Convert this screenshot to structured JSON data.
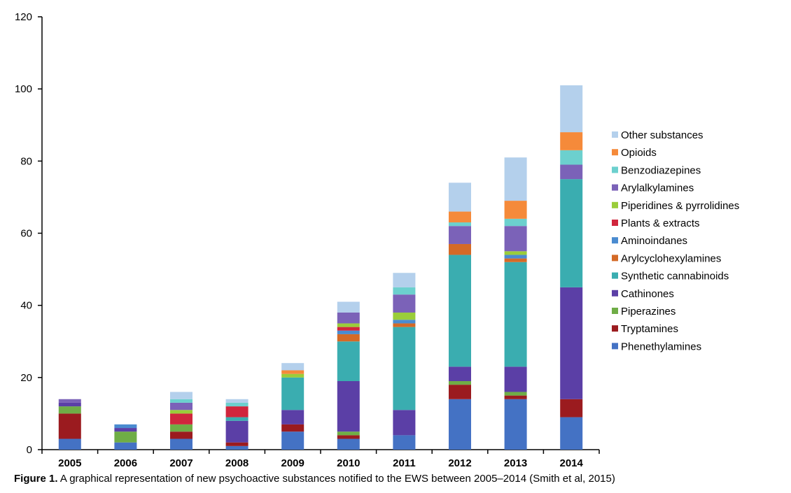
{
  "chart_data": {
    "type": "bar",
    "stacked": true,
    "categories": [
      "2005",
      "2006",
      "2007",
      "2008",
      "2009",
      "2010",
      "2011",
      "2012",
      "2013",
      "2014"
    ],
    "ylim": [
      0,
      120
    ],
    "yticks": [
      0,
      20,
      40,
      60,
      80,
      100,
      120
    ],
    "legend_position": "right",
    "series": [
      {
        "name": "Phenethylamines",
        "color": "#4472C4",
        "values": [
          3,
          2,
          3,
          1,
          5,
          3,
          4,
          14,
          14,
          9
        ]
      },
      {
        "name": "Tryptamines",
        "color": "#9B1B1F",
        "values": [
          7,
          0,
          2,
          1,
          2,
          1,
          0,
          4,
          1,
          5
        ]
      },
      {
        "name": "Piperazines",
        "color": "#6FAD46",
        "values": [
          2,
          3,
          2,
          0,
          0,
          1,
          0,
          1,
          1,
          0
        ]
      },
      {
        "name": "Cathinones",
        "color": "#5B3FA6",
        "values": [
          1,
          1,
          0,
          6,
          4,
          14,
          7,
          4,
          7,
          31
        ]
      },
      {
        "name": "Synthetic cannabinoids",
        "color": "#3AADB0",
        "values": [
          0,
          0,
          0,
          1,
          9,
          11,
          23,
          31,
          29,
          30
        ]
      },
      {
        "name": "Arylcyclohexylamines",
        "color": "#D46A27",
        "values": [
          0,
          0,
          0,
          0,
          0,
          2,
          1,
          3,
          1,
          0
        ]
      },
      {
        "name": "Aminoindanes",
        "color": "#4A8BD0",
        "values": [
          0,
          1,
          0,
          0,
          0,
          1,
          1,
          0,
          1,
          0
        ]
      },
      {
        "name": "Plants & extracts",
        "color": "#D0263D",
        "values": [
          0,
          0,
          3,
          3,
          0,
          1,
          0,
          0,
          0,
          0
        ]
      },
      {
        "name": "Piperidines & pyrrolidines",
        "color": "#9ACD3A",
        "values": [
          0,
          0,
          1,
          0,
          1,
          1,
          2,
          0,
          1,
          0
        ]
      },
      {
        "name": "Arylalkylamines",
        "color": "#7B62B8",
        "values": [
          1,
          0,
          2,
          0,
          0,
          3,
          5,
          5,
          7,
          4
        ]
      },
      {
        "name": "Benzodiazepines",
        "color": "#6CD0CE",
        "values": [
          0,
          0,
          1,
          1,
          0,
          0,
          2,
          1,
          2,
          4
        ]
      },
      {
        "name": "Opioids",
        "color": "#F58A3A",
        "values": [
          0,
          0,
          0,
          0,
          1,
          0,
          0,
          3,
          5,
          5
        ]
      },
      {
        "name": "Other substances",
        "color": "#B4D0EC",
        "values": [
          0,
          0,
          2,
          1,
          2,
          3,
          4,
          8,
          12,
          13
        ]
      }
    ]
  },
  "caption": {
    "label": "Figure 1.",
    "text": " A graphical representation of new psychoactive substances notified to the EWS between 2005–2014 (Smith et al, 2015)"
  }
}
